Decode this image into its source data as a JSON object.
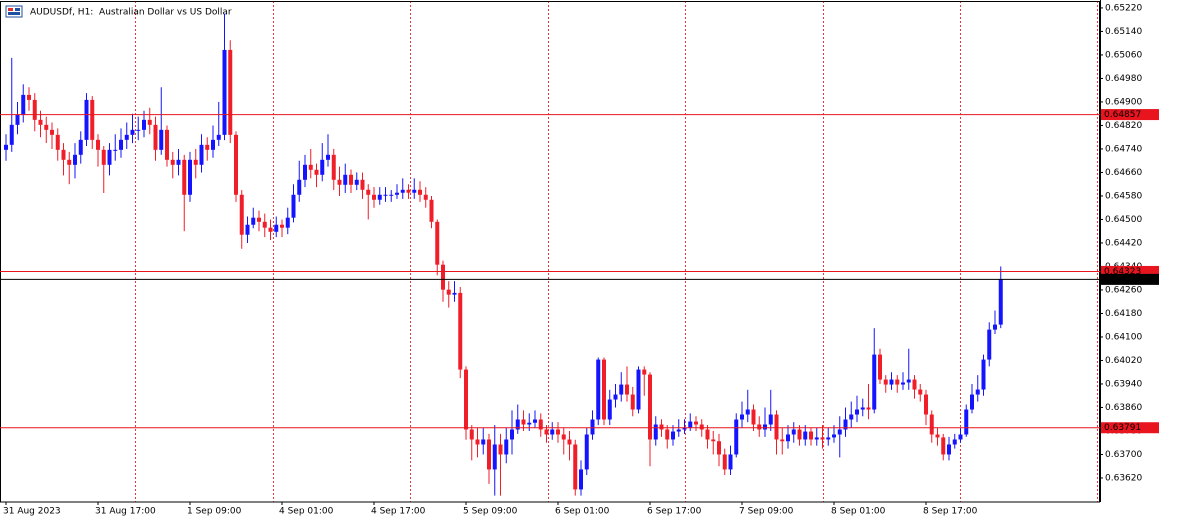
{
  "chart_data": {
    "type": "candlestick",
    "title": "AUDUSDf, H1:  Australian Dollar vs US Dollar",
    "up_color": "#1414ff",
    "down_color": "#f01e28",
    "ylim": [
      0.63545,
      0.65247
    ],
    "yticks": [
      {
        "value": 0.6522,
        "label": "0.65220"
      },
      {
        "value": 0.6514,
        "label": "0.65140"
      },
      {
        "value": 0.6506,
        "label": "0.65060"
      },
      {
        "value": 0.6498,
        "label": "0.64980"
      },
      {
        "value": 0.649,
        "label": "0.64900"
      },
      {
        "value": 0.6482,
        "label": "0.64820"
      },
      {
        "value": 0.6474,
        "label": "0.64740"
      },
      {
        "value": 0.6466,
        "label": "0.64660"
      },
      {
        "value": 0.6458,
        "label": "0.64580"
      },
      {
        "value": 0.645,
        "label": "0.64500"
      },
      {
        "value": 0.6442,
        "label": "0.64420"
      },
      {
        "value": 0.6434,
        "label": "0.64340"
      },
      {
        "value": 0.6426,
        "label": "0.64260"
      },
      {
        "value": 0.6418,
        "label": "0.64180"
      },
      {
        "value": 0.641,
        "label": "0.64100"
      },
      {
        "value": 0.6402,
        "label": "0.64020"
      },
      {
        "value": 0.6394,
        "label": "0.63940"
      },
      {
        "value": 0.6386,
        "label": "0.63860"
      },
      {
        "value": 0.6378,
        "label": "0.63780"
      },
      {
        "value": 0.637,
        "label": "0.63700"
      },
      {
        "value": 0.6362,
        "label": "0.63620"
      }
    ],
    "hlines": [
      {
        "value": 0.64857,
        "color": "#e8141e"
      },
      {
        "value": 0.64323,
        "color": "#e8141e"
      },
      {
        "value": 0.63791,
        "color": "#e8141e"
      },
      {
        "value": 0.64296,
        "color": "#000000"
      }
    ],
    "categories": [
      "31 Aug 2023",
      null,
      null,
      null,
      null,
      null,
      null,
      null,
      null,
      null,
      null,
      null,
      null,
      null,
      null,
      null,
      "31 Aug 17:00",
      null,
      null,
      null,
      null,
      null,
      null,
      null,
      null,
      null,
      null,
      null,
      null,
      null,
      null,
      null,
      "1 Sep 09:00",
      null,
      null,
      null,
      null,
      null,
      null,
      null,
      null,
      null,
      null,
      null,
      null,
      null,
      null,
      null,
      "4 Sep 01:00",
      null,
      null,
      null,
      null,
      null,
      null,
      null,
      null,
      null,
      null,
      null,
      null,
      null,
      null,
      null,
      "4 Sep 17:00",
      null,
      null,
      null,
      null,
      null,
      null,
      null,
      null,
      null,
      null,
      null,
      null,
      null,
      null,
      null,
      "5 Sep 09:00",
      null,
      null,
      null,
      null,
      null,
      null,
      null,
      null,
      null,
      null,
      null,
      null,
      null,
      null,
      null,
      "6 Sep 01:00",
      null,
      null,
      null,
      null,
      null,
      null,
      null,
      null,
      null,
      null,
      null,
      null,
      null,
      null,
      null,
      "6 Sep 17:00",
      null,
      null,
      null,
      null,
      null,
      null,
      null,
      null,
      null,
      null,
      null,
      null,
      null,
      null,
      null,
      "7 Sep 09:00",
      null,
      null,
      null,
      null,
      null,
      null,
      null,
      null,
      null,
      null,
      null,
      null,
      null,
      null,
      null,
      "8 Sep 01:00",
      null,
      null,
      null,
      null,
      null,
      null,
      null,
      null,
      null,
      null,
      null,
      null,
      null,
      null,
      null,
      "8 Sep 17:00",
      null,
      null,
      null,
      null,
      null,
      null,
      null,
      null,
      null,
      null,
      null,
      null,
      null
    ],
    "open": [
      0.64737,
      0.64754,
      0.64822,
      0.64856,
      0.64924,
      0.64907,
      0.64839,
      0.64822,
      0.64805,
      0.64788,
      0.64737,
      0.64703,
      0.64686,
      0.6472,
      0.64771,
      0.64907,
      0.64771,
      0.64737,
      0.64686,
      0.64737,
      0.64737,
      0.64771,
      0.64788,
      0.64805,
      0.64805,
      0.64839,
      0.64822,
      0.64737,
      0.64805,
      0.64703,
      0.64686,
      0.64703,
      0.64584,
      0.64703,
      0.64686,
      0.64754,
      0.64737,
      0.64771,
      0.64788,
      0.65077,
      0.64788,
      0.64584,
      0.64448,
      0.64482,
      0.64506,
      0.64492,
      0.64472,
      0.64458,
      0.64482,
      0.64472,
      0.64506,
      0.64584,
      0.64635,
      0.64686,
      0.64669,
      0.64652,
      0.64703,
      0.6472,
      0.64635,
      0.64618,
      0.64652,
      0.64618,
      0.64635,
      0.64601,
      0.64584,
      0.64567,
      0.64584,
      0.64584,
      0.64584,
      0.64591,
      0.64601,
      0.64591,
      0.64601,
      0.64584,
      0.64567,
      0.64492,
      0.64346,
      0.64261,
      0.64244,
      0.6425,
      0.63989,
      0.63785,
      0.63751,
      0.63734,
      0.63751,
      0.63649,
      0.63734,
      0.637,
      0.63751,
      0.63785,
      0.63819,
      0.63802,
      0.63808,
      0.63819,
      0.63785,
      0.63768,
      0.63785,
      0.63768,
      0.63751,
      0.63734,
      0.63581,
      0.63649,
      0.63768,
      0.63819,
      0.64023,
      0.63819,
      0.63887,
      0.63904,
      0.63938,
      0.63904,
      0.63853,
      0.63989,
      0.63972,
      0.63751,
      0.63802,
      0.63785,
      0.63751,
      0.63778,
      0.63785,
      0.63792,
      0.63812,
      0.63802,
      0.63785,
      0.63751,
      0.63745,
      0.637,
      0.63649,
      0.637,
      0.63819,
      0.63836,
      0.63853,
      0.63802,
      0.63785,
      0.63802,
      0.63836,
      0.63751,
      0.63745,
      0.63768,
      0.63785,
      0.63751,
      0.63778,
      0.63751,
      0.63758,
      0.63751,
      0.63758,
      0.63768,
      0.63785,
      0.63819,
      0.63836,
      0.63853,
      0.6386,
      0.63853,
      0.6404,
      0.63955,
      0.63938,
      0.63955,
      0.63938,
      0.63945,
      0.63955,
      0.63921,
      0.63904,
      0.63836,
      0.63768,
      0.63758,
      0.637,
      0.63734,
      0.63751,
      0.63768,
      0.63853,
      0.63904,
      0.63921,
      0.64023,
      0.64125,
      0.64142
    ],
    "high": [
      0.6479,
      0.6505,
      0.649,
      0.6496,
      0.6495,
      0.6493,
      0.6487,
      0.6485,
      0.6483,
      0.6481,
      0.6476,
      0.6473,
      0.6476,
      0.648,
      0.6493,
      0.6492,
      0.6479,
      0.6475,
      0.6476,
      0.6479,
      0.6481,
      0.6483,
      0.6486,
      0.6485,
      0.6487,
      0.6488,
      0.6485,
      0.6495,
      0.6482,
      0.6473,
      0.6474,
      0.6472,
      0.6473,
      0.6474,
      0.6479,
      0.6478,
      0.6482,
      0.649,
      0.652,
      0.6511,
      0.648,
      0.646,
      0.6451,
      0.6454,
      0.6453,
      0.6452,
      0.645,
      0.6451,
      0.645,
      0.6454,
      0.6462,
      0.647,
      0.6472,
      0.6474,
      0.6469,
      0.6476,
      0.6479,
      0.6474,
      0.6468,
      0.6469,
      0.6467,
      0.6466,
      0.6466,
      0.6462,
      0.6461,
      0.6461,
      0.6461,
      0.646,
      0.6462,
      0.6464,
      0.6462,
      0.6464,
      0.6463,
      0.6461,
      0.6458,
      0.645,
      0.6436,
      0.6429,
      0.6429,
      0.6427,
      0.64,
      0.638,
      0.6379,
      0.6379,
      0.6377,
      0.638,
      0.6377,
      0.6379,
      0.6385,
      0.6387,
      0.6385,
      0.6384,
      0.6385,
      0.6384,
      0.638,
      0.6381,
      0.6381,
      0.6379,
      0.6378,
      0.6375,
      0.6368,
      0.6379,
      0.6385,
      0.6403,
      0.6403,
      0.6392,
      0.6394,
      0.6398,
      0.64,
      0.6393,
      0.64,
      0.64,
      0.6398,
      0.6383,
      0.6382,
      0.638,
      0.638,
      0.6382,
      0.6382,
      0.6384,
      0.6383,
      0.6382,
      0.638,
      0.6378,
      0.6377,
      0.6372,
      0.6373,
      0.6384,
      0.6388,
      0.6392,
      0.6387,
      0.6383,
      0.6386,
      0.6392,
      0.6385,
      0.6379,
      0.638,
      0.6381,
      0.638,
      0.638,
      0.6379,
      0.6379,
      0.638,
      0.6379,
      0.638,
      0.6383,
      0.6386,
      0.6388,
      0.639,
      0.6389,
      0.6394,
      0.6413,
      0.6406,
      0.6397,
      0.6398,
      0.6397,
      0.6398,
      0.6406,
      0.6397,
      0.6394,
      0.6392,
      0.6385,
      0.6379,
      0.6377,
      0.6376,
      0.6377,
      0.6379,
      0.6387,
      0.6394,
      0.6397,
      0.6404,
      0.6415,
      0.6419,
      0.6434
    ],
    "low": [
      0.647,
      0.6473,
      0.6479,
      0.6483,
      0.6487,
      0.648,
      0.6478,
      0.6476,
      0.6474,
      0.647,
      0.6465,
      0.6462,
      0.6464,
      0.6469,
      0.6475,
      0.6474,
      0.6468,
      0.6459,
      0.6465,
      0.647,
      0.6471,
      0.6474,
      0.6476,
      0.6477,
      0.6478,
      0.6479,
      0.647,
      0.6472,
      0.6468,
      0.6464,
      0.6465,
      0.6446,
      0.6456,
      0.6464,
      0.6466,
      0.647,
      0.6471,
      0.6475,
      0.6477,
      0.6476,
      0.6456,
      0.644,
      0.6442,
      0.6447,
      0.6446,
      0.6444,
      0.6443,
      0.6444,
      0.6444,
      0.6445,
      0.6449,
      0.6456,
      0.6461,
      0.6464,
      0.6461,
      0.6463,
      0.6468,
      0.646,
      0.6458,
      0.6459,
      0.6459,
      0.646,
      0.6457,
      0.645,
      0.6454,
      0.6455,
      0.6456,
      0.6456,
      0.6457,
      0.6457,
      0.6457,
      0.6457,
      0.6456,
      0.6454,
      0.6447,
      0.6431,
      0.6422,
      0.642,
      0.6422,
      0.6396,
      0.6375,
      0.6368,
      0.6369,
      0.637,
      0.636,
      0.6356,
      0.6356,
      0.6367,
      0.637,
      0.6377,
      0.6378,
      0.6378,
      0.6379,
      0.6376,
      0.6374,
      0.6375,
      0.6374,
      0.637,
      0.6368,
      0.6356,
      0.6356,
      0.6363,
      0.6375,
      0.638,
      0.638,
      0.638,
      0.6386,
      0.6388,
      0.6388,
      0.6383,
      0.6384,
      0.639,
      0.6366,
      0.6373,
      0.6376,
      0.6372,
      0.6373,
      0.6376,
      0.6377,
      0.6378,
      0.6378,
      0.6376,
      0.6372,
      0.637,
      0.6366,
      0.6363,
      0.6363,
      0.6369,
      0.6379,
      0.6381,
      0.6378,
      0.6376,
      0.6376,
      0.6378,
      0.637,
      0.637,
      0.6372,
      0.6374,
      0.6373,
      0.6373,
      0.6373,
      0.6373,
      0.6372,
      0.6373,
      0.6374,
      0.6369,
      0.6376,
      0.6379,
      0.6381,
      0.6383,
      0.6382,
      0.6384,
      0.6394,
      0.6391,
      0.6392,
      0.6391,
      0.6392,
      0.6392,
      0.6389,
      0.6388,
      0.638,
      0.6374,
      0.6373,
      0.6368,
      0.6368,
      0.6372,
      0.6374,
      0.6376,
      0.6384,
      0.6388,
      0.639,
      0.64,
      0.6411,
      0.6413
    ],
    "close": [
      0.64754,
      0.64822,
      0.64856,
      0.64924,
      0.64907,
      0.64839,
      0.64822,
      0.64805,
      0.64788,
      0.64737,
      0.64703,
      0.64686,
      0.6472,
      0.64771,
      0.64907,
      0.64771,
      0.64737,
      0.64686,
      0.64737,
      0.64737,
      0.64771,
      0.64788,
      0.64805,
      0.64805,
      0.64839,
      0.64822,
      0.64737,
      0.64805,
      0.64703,
      0.64686,
      0.64703,
      0.64584,
      0.64703,
      0.64686,
      0.64754,
      0.64737,
      0.64771,
      0.64788,
      0.65077,
      0.64788,
      0.64584,
      0.64448,
      0.64482,
      0.64506,
      0.64492,
      0.64472,
      0.64458,
      0.64482,
      0.64472,
      0.64506,
      0.64584,
      0.64635,
      0.64686,
      0.64669,
      0.64652,
      0.64703,
      0.6472,
      0.64635,
      0.64618,
      0.64652,
      0.64618,
      0.64635,
      0.64601,
      0.64584,
      0.64567,
      0.64584,
      0.64584,
      0.64584,
      0.64591,
      0.64601,
      0.64591,
      0.64601,
      0.64584,
      0.64567,
      0.64492,
      0.64346,
      0.64261,
      0.64244,
      0.6425,
      0.63989,
      0.63785,
      0.63751,
      0.63734,
      0.63751,
      0.63649,
      0.63734,
      0.637,
      0.63751,
      0.63785,
      0.63819,
      0.63802,
      0.63808,
      0.63819,
      0.63785,
      0.63768,
      0.63785,
      0.63768,
      0.63751,
      0.63734,
      0.63581,
      0.63649,
      0.63768,
      0.63819,
      0.64023,
      0.63819,
      0.63887,
      0.63904,
      0.63938,
      0.63904,
      0.63853,
      0.63989,
      0.63972,
      0.63751,
      0.63802,
      0.63785,
      0.63751,
      0.63778,
      0.63785,
      0.63792,
      0.63812,
      0.63802,
      0.63785,
      0.63751,
      0.63745,
      0.637,
      0.63649,
      0.637,
      0.63819,
      0.63836,
      0.63853,
      0.63802,
      0.63785,
      0.63802,
      0.63836,
      0.63751,
      0.63745,
      0.63768,
      0.63785,
      0.63751,
      0.63778,
      0.63751,
      0.63758,
      0.63751,
      0.63758,
      0.63768,
      0.63785,
      0.63819,
      0.63836,
      0.63853,
      0.6386,
      0.63853,
      0.6404,
      0.63955,
      0.63938,
      0.63955,
      0.63938,
      0.63945,
      0.63955,
      0.63921,
      0.63904,
      0.63836,
      0.63768,
      0.63758,
      0.637,
      0.63734,
      0.63751,
      0.63768,
      0.63853,
      0.63904,
      0.63921,
      0.64023,
      0.64125,
      0.64142,
      0.64296
    ]
  }
}
